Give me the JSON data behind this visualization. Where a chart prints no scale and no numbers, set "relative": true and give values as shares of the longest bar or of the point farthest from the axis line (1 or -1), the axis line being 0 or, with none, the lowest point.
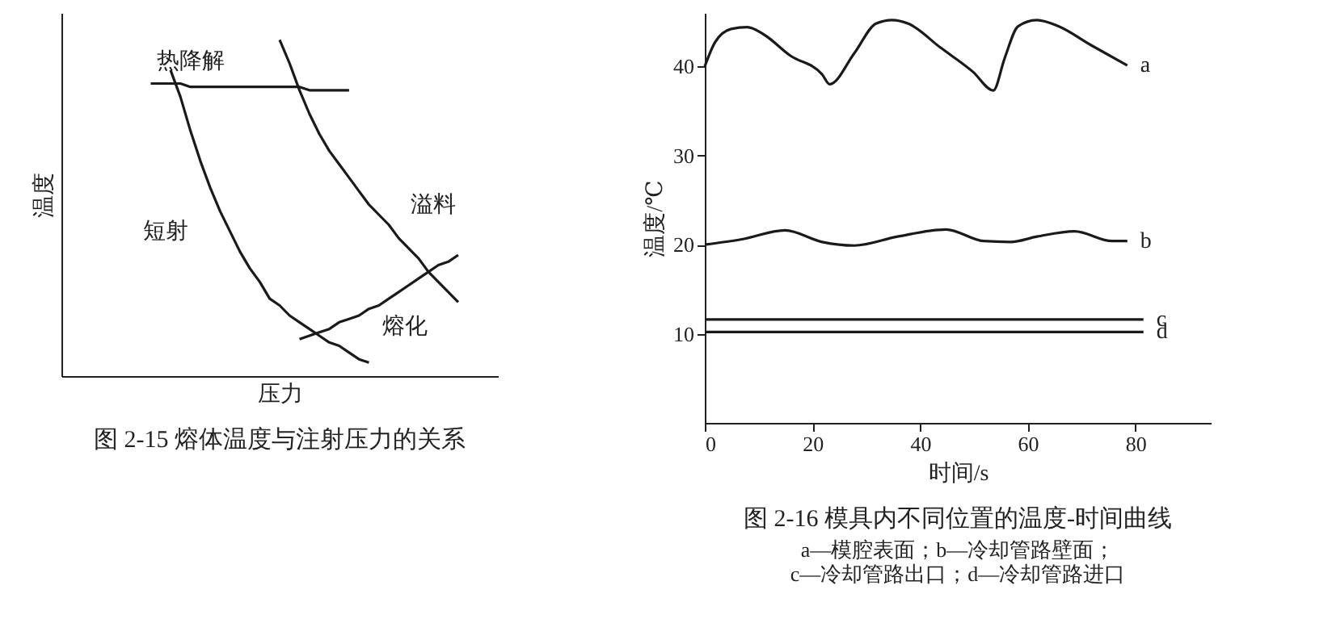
{
  "chart_data": [
    {
      "type": "line",
      "title": "图 2-15 熔体温度与注射压力的关系",
      "xlabel": "压力",
      "ylabel": "温度",
      "relative": true,
      "categories": [
        null,
        null,
        null,
        null,
        null,
        null,
        null,
        null,
        null,
        null,
        null,
        null,
        null,
        null,
        null,
        null,
        null,
        null,
        null,
        null,
        null,
        null,
        null,
        null,
        null,
        null,
        null,
        null,
        null,
        null,
        null,
        null,
        null,
        null,
        null,
        null,
        null,
        null,
        null,
        null,
        null,
        null,
        null,
        null,
        null
      ],
      "series": [
        {
          "name": "热降解",
          "color": "#1a1a1a",
          "values": [
            null,
            null,
            null,
            null,
            null,
            null,
            null,
            null,
            null,
            0.87,
            0.87,
            0.87,
            0.87,
            0.86,
            0.86,
            0.86,
            0.86,
            0.86,
            0.86,
            0.86,
            0.86,
            0.86,
            0.86,
            0.86,
            0.86,
            0.85,
            0.85,
            0.85,
            0.85,
            0.85,
            null,
            null,
            null,
            null,
            null,
            null,
            null,
            null,
            null,
            null,
            null,
            null,
            null,
            null,
            null
          ]
        },
        {
          "name": "短射",
          "color": "#1a1a1a",
          "values": [
            null,
            null,
            null,
            null,
            null,
            null,
            null,
            null,
            null,
            null,
            null,
            0.91,
            0.83,
            0.73,
            0.64,
            0.56,
            0.49,
            0.43,
            0.37,
            0.32,
            0.28,
            0.23,
            0.21,
            0.18,
            0.16,
            0.14,
            0.12,
            0.1,
            0.09,
            0.07,
            0.05,
            0.04,
            null,
            null,
            null,
            null,
            null,
            null,
            null,
            null,
            null,
            null,
            null,
            null,
            null
          ]
        },
        {
          "name": "溢料",
          "color": "#1a1a1a",
          "values": [
            null,
            null,
            null,
            null,
            null,
            null,
            null,
            null,
            null,
            null,
            null,
            null,
            null,
            null,
            null,
            null,
            null,
            null,
            null,
            null,
            null,
            null,
            1.0,
            0.93,
            0.85,
            0.78,
            0.72,
            0.67,
            0.63,
            0.59,
            0.55,
            0.51,
            0.48,
            0.45,
            0.41,
            0.38,
            0.35,
            0.31,
            0.28,
            0.25,
            0.22,
            null,
            null,
            null,
            null
          ]
        },
        {
          "name": "熔化",
          "color": "#1a1a1a",
          "values": [
            null,
            null,
            null,
            null,
            null,
            null,
            null,
            null,
            null,
            null,
            null,
            null,
            null,
            null,
            null,
            null,
            null,
            null,
            null,
            null,
            null,
            null,
            null,
            null,
            0.11,
            0.12,
            0.13,
            0.14,
            0.16,
            0.17,
            0.18,
            0.2,
            0.21,
            0.23,
            0.25,
            0.27,
            0.29,
            0.31,
            0.33,
            0.34,
            0.36,
            null,
            null,
            null,
            null
          ]
        }
      ]
    },
    {
      "type": "line",
      "title": "图 2-16 模具内不同位置的温度-时间曲线",
      "annotations": [
        "a—模腔表面；b—冷却管路壁面；",
        "c—冷却管路出口；d—冷却管路进口"
      ],
      "xlabel": "时间/s",
      "ylabel": "温度/℃",
      "xlim": [
        0,
        94
      ],
      "ylim": [
        0,
        46
      ],
      "xticks": [
        0,
        20,
        40,
        60,
        80
      ],
      "yticks": [
        10,
        20,
        30,
        40
      ],
      "series": [
        {
          "name": "a",
          "color": "#1a1a1a",
          "x": [
            0,
            1.9,
            4.9,
            7.9,
            10.9,
            15.9,
            21.8,
            23.2,
            27.8,
            31.8,
            34.8,
            37.8,
            43.8,
            49.8,
            53.6,
            55.7,
            58.2,
            61.7,
            65.7,
            71.7,
            78.5
          ],
          "values": [
            40.0,
            42.7,
            44.2,
            44.4,
            43.6,
            41.2,
            39.1,
            38.0,
            41.5,
            44.8,
            45.2,
            44.8,
            42.1,
            39.4,
            37.3,
            40.9,
            44.5,
            45.2,
            44.5,
            42.4,
            40.1
          ]
        },
        {
          "name": "b",
          "color": "#1a1a1a",
          "x": [
            0,
            6.9,
            14.9,
            21.8,
            27.8,
            35.8,
            44.8,
            51.8,
            56.8,
            61.7,
            68.7,
            75.7,
            78.5
          ],
          "values": [
            20.0,
            20.6,
            21.6,
            20.3,
            19.9,
            20.9,
            21.7,
            20.4,
            20.3,
            20.9,
            21.5,
            20.4,
            20.4
          ]
        },
        {
          "name": "c",
          "color": "#1a1a1a",
          "x": [
            0,
            81.5
          ],
          "values": [
            11.6,
            11.6
          ]
        },
        {
          "name": "d",
          "color": "#1a1a1a",
          "x": [
            0,
            81.5
          ],
          "values": [
            10.2,
            10.2
          ]
        }
      ]
    }
  ]
}
